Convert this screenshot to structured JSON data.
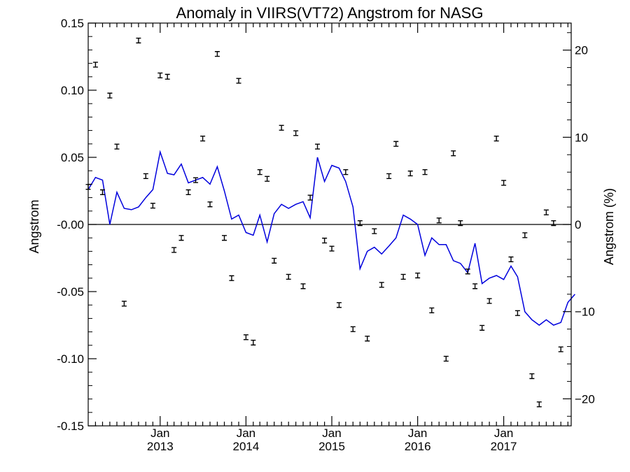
{
  "chart_data": {
    "type": "scatter",
    "title": "Anomaly in VIIRS(VT72) Angstrom for NASG",
    "ylabel": "Angstrom",
    "ylabel_right": "Angstrom (%)",
    "xlim": [
      "2012-03-01",
      "2017-10-15"
    ],
    "ylim": [
      -0.15,
      0.15
    ],
    "ylim_right": [
      -23.1,
      23.1
    ],
    "yticks": [
      0.15,
      0.1,
      0.05,
      0.0,
      -0.05,
      -0.1,
      -0.15
    ],
    "ytick_labels": [
      "0.15",
      "0.10",
      "0.05",
      "-0.00",
      "-0.05",
      "-0.10",
      "-0.15"
    ],
    "yticks_right": [
      20,
      10,
      0,
      -10,
      -20
    ],
    "ytick_labels_right": [
      "20",
      "10",
      "0",
      "−10",
      "−20"
    ],
    "xticks": [
      {
        "date": "2013-01-01",
        "month": "Jan",
        "year": "2013"
      },
      {
        "date": "2014-01-01",
        "month": "Jan",
        "year": "2014"
      },
      {
        "date": "2015-01-01",
        "month": "Jan",
        "year": "2015"
      },
      {
        "date": "2016-01-01",
        "month": "Jan",
        "year": "2016"
      },
      {
        "date": "2017-01-01",
        "month": "Jan",
        "year": "2017"
      }
    ],
    "zero_line": true,
    "grid": false,
    "legend": "none",
    "colors": {
      "smooth": "#0000dd",
      "points": "#000000",
      "axes": "#000000"
    },
    "series": [
      {
        "kind": "monthly anomalies with error bars",
        "error": 0.001,
        "points": [
          [
            "2012-03-01",
            0.028
          ],
          [
            "2012-04-01",
            0.119
          ],
          [
            "2012-05-01",
            0.024
          ],
          [
            "2012-06-01",
            0.096
          ],
          [
            "2012-07-01",
            0.058
          ],
          [
            "2012-08-01",
            -0.059
          ],
          [
            "2012-10-01",
            0.137
          ],
          [
            "2012-11-01",
            0.036
          ],
          [
            "2012-12-01",
            0.014
          ],
          [
            "2013-01-01",
            0.111
          ],
          [
            "2013-02-01",
            0.11
          ],
          [
            "2013-03-01",
            -0.019
          ],
          [
            "2013-04-01",
            -0.01
          ],
          [
            "2013-05-01",
            0.024
          ],
          [
            "2013-06-01",
            0.033
          ],
          [
            "2013-07-01",
            0.064
          ],
          [
            "2013-08-01",
            0.015
          ],
          [
            "2013-09-01",
            0.127
          ],
          [
            "2013-10-01",
            -0.01
          ],
          [
            "2013-11-01",
            -0.04
          ],
          [
            "2013-12-01",
            0.107
          ],
          [
            "2014-01-01",
            -0.084
          ],
          [
            "2014-02-01",
            -0.088
          ],
          [
            "2014-03-01",
            0.039
          ],
          [
            "2014-04-01",
            0.034
          ],
          [
            "2014-05-01",
            -0.027
          ],
          [
            "2014-06-01",
            0.072
          ],
          [
            "2014-07-01",
            -0.039
          ],
          [
            "2014-08-01",
            0.068
          ],
          [
            "2014-09-01",
            -0.046
          ],
          [
            "2014-10-01",
            0.02
          ],
          [
            "2014-11-01",
            0.058
          ],
          [
            "2014-12-01",
            -0.012
          ],
          [
            "2015-01-01",
            -0.018
          ],
          [
            "2015-02-01",
            -0.06
          ],
          [
            "2015-03-01",
            0.039
          ],
          [
            "2015-04-01",
            -0.078
          ],
          [
            "2015-05-01",
            0.001
          ],
          [
            "2015-06-01",
            -0.085
          ],
          [
            "2015-07-01",
            -0.005
          ],
          [
            "2015-08-01",
            -0.045
          ],
          [
            "2015-09-01",
            0.036
          ],
          [
            "2015-10-01",
            0.06
          ],
          [
            "2015-11-01",
            -0.039
          ],
          [
            "2015-12-01",
            0.038
          ],
          [
            "2016-01-01",
            -0.038
          ],
          [
            "2016-02-01",
            0.039
          ],
          [
            "2016-03-01",
            -0.064
          ],
          [
            "2016-04-01",
            0.003
          ],
          [
            "2016-05-01",
            -0.1
          ],
          [
            "2016-06-01",
            0.053
          ],
          [
            "2016-07-01",
            0.001
          ],
          [
            "2016-08-01",
            -0.035
          ],
          [
            "2016-09-01",
            -0.046
          ],
          [
            "2016-10-01",
            -0.077
          ],
          [
            "2016-11-01",
            -0.057
          ],
          [
            "2016-12-01",
            0.064
          ],
          [
            "2017-01-01",
            0.031
          ],
          [
            "2017-02-01",
            -0.026
          ],
          [
            "2017-03-01",
            -0.066
          ],
          [
            "2017-04-01",
            -0.008
          ],
          [
            "2017-05-01",
            -0.113
          ],
          [
            "2017-06-01",
            -0.134
          ],
          [
            "2017-07-01",
            0.009
          ],
          [
            "2017-08-01",
            0.001
          ],
          [
            "2017-09-01",
            -0.093
          ]
        ]
      },
      {
        "kind": "running mean line",
        "points": [
          [
            "2012-03-01",
            0.026
          ],
          [
            "2012-04-01",
            0.035
          ],
          [
            "2012-05-01",
            0.033
          ],
          [
            "2012-06-01",
            0.0
          ],
          [
            "2012-07-01",
            0.024
          ],
          [
            "2012-08-01",
            0.012
          ],
          [
            "2012-09-01",
            0.011
          ],
          [
            "2012-10-01",
            0.013
          ],
          [
            "2012-11-01",
            0.02
          ],
          [
            "2012-12-01",
            0.026
          ],
          [
            "2013-01-01",
            0.054
          ],
          [
            "2013-02-01",
            0.038
          ],
          [
            "2013-03-01",
            0.037
          ],
          [
            "2013-04-01",
            0.045
          ],
          [
            "2013-05-01",
            0.031
          ],
          [
            "2013-06-01",
            0.033
          ],
          [
            "2013-07-01",
            0.035
          ],
          [
            "2013-08-01",
            0.03
          ],
          [
            "2013-09-01",
            0.043
          ],
          [
            "2013-10-01",
            0.025
          ],
          [
            "2013-11-01",
            0.004
          ],
          [
            "2013-12-01",
            0.007
          ],
          [
            "2014-01-01",
            -0.006
          ],
          [
            "2014-02-01",
            -0.008
          ],
          [
            "2014-03-01",
            0.007
          ],
          [
            "2014-04-01",
            -0.013
          ],
          [
            "2014-05-01",
            0.008
          ],
          [
            "2014-06-01",
            0.015
          ],
          [
            "2014-07-01",
            0.012
          ],
          [
            "2014-08-01",
            0.015
          ],
          [
            "2014-09-01",
            0.017
          ],
          [
            "2014-10-01",
            0.005
          ],
          [
            "2014-11-01",
            0.05
          ],
          [
            "2014-12-01",
            0.032
          ],
          [
            "2015-01-01",
            0.044
          ],
          [
            "2015-02-01",
            0.042
          ],
          [
            "2015-03-01",
            0.032
          ],
          [
            "2015-04-01",
            0.013
          ],
          [
            "2015-05-01",
            -0.033
          ],
          [
            "2015-06-01",
            -0.02
          ],
          [
            "2015-07-01",
            -0.017
          ],
          [
            "2015-08-01",
            -0.022
          ],
          [
            "2015-09-01",
            -0.016
          ],
          [
            "2015-10-01",
            -0.01
          ],
          [
            "2015-11-01",
            0.007
          ],
          [
            "2015-12-01",
            0.004
          ],
          [
            "2016-01-01",
            0.0
          ],
          [
            "2016-02-01",
            -0.023
          ],
          [
            "2016-03-01",
            -0.01
          ],
          [
            "2016-04-01",
            -0.015
          ],
          [
            "2016-05-01",
            -0.015
          ],
          [
            "2016-06-01",
            -0.027
          ],
          [
            "2016-07-01",
            -0.029
          ],
          [
            "2016-08-01",
            -0.036
          ],
          [
            "2016-09-01",
            -0.014
          ],
          [
            "2016-10-01",
            -0.044
          ],
          [
            "2016-11-01",
            -0.04
          ],
          [
            "2016-12-01",
            -0.038
          ],
          [
            "2017-01-01",
            -0.041
          ],
          [
            "2017-02-01",
            -0.031
          ],
          [
            "2017-03-01",
            -0.039
          ],
          [
            "2017-04-01",
            -0.065
          ],
          [
            "2017-05-01",
            -0.071
          ],
          [
            "2017-06-01",
            -0.075
          ],
          [
            "2017-07-01",
            -0.071
          ],
          [
            "2017-08-01",
            -0.075
          ],
          [
            "2017-09-01",
            -0.073
          ],
          [
            "2017-10-01",
            -0.058
          ],
          [
            "2017-10-31",
            -0.052
          ]
        ]
      }
    ]
  }
}
